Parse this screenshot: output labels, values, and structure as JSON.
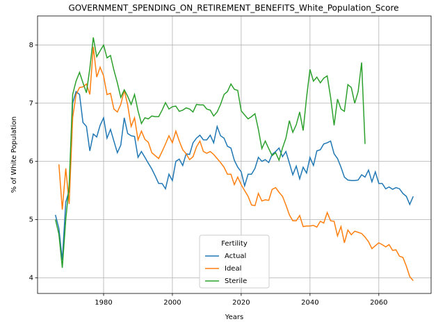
{
  "chart_data": {
    "type": "line",
    "title": "GOVERNMENT_SPENDING_ON_RETIREMENT_BENEFITS_White_Population_Score",
    "x_label": "Years",
    "y_label": "% of White Population",
    "legend_title": "Fertility",
    "legend": "lower center",
    "grid": true,
    "xlim": [
      1960.8,
      2075.2
    ],
    "xticks": [
      1980,
      2000,
      2020,
      2040,
      2060
    ],
    "ylim": [
      3.73,
      8.5
    ],
    "yticks": [
      4,
      5,
      6,
      7,
      8
    ],
    "x": [
      1966,
      1967,
      1968,
      1969,
      1970,
      1971,
      1972,
      1973,
      1974,
      1975,
      1976,
      1977,
      1978,
      1979,
      1980,
      1981,
      1982,
      1983,
      1984,
      1985,
      1986,
      1987,
      1988,
      1989,
      1990,
      1991,
      1992,
      1993,
      1994,
      1995,
      1996,
      1997,
      1998,
      1999,
      2000,
      2001,
      2002,
      2003,
      2004,
      2005,
      2006,
      2007,
      2008,
      2009,
      2010,
      2011,
      2012,
      2013,
      2014,
      2015,
      2016,
      2017,
      2018,
      2019,
      2020,
      2021,
      2022,
      2023,
      2024,
      2025,
      2026,
      2027,
      2028,
      2029,
      2030,
      2031,
      2032,
      2033,
      2034,
      2035,
      2036,
      2037,
      2038,
      2039,
      2040,
      2041,
      2042,
      2043,
      2044,
      2045,
      2046,
      2047,
      2048,
      2049,
      2050,
      2051,
      2052,
      2053,
      2054,
      2055,
      2056,
      2057,
      2058,
      2059,
      2060,
      2061,
      2062,
      2063,
      2064,
      2065,
      2066,
      2067,
      2068,
      2069,
      2070
    ],
    "series": [
      {
        "name": "Actual",
        "color": "#1f77b4",
        "values": [
          5.08,
          4.85,
          4.3,
          5.3,
          5.5,
          7.0,
          7.2,
          7.15,
          6.67,
          6.6,
          6.18,
          6.47,
          6.42,
          6.62,
          6.75,
          6.4,
          6.55,
          6.35,
          6.15,
          6.28,
          6.75,
          6.48,
          6.44,
          6.43,
          6.07,
          6.17,
          6.07,
          5.97,
          5.87,
          5.75,
          5.62,
          5.62,
          5.53,
          5.78,
          5.67,
          6.0,
          6.04,
          5.93,
          6.13,
          6.12,
          6.32,
          6.4,
          6.45,
          6.37,
          6.37,
          6.45,
          6.32,
          6.6,
          6.44,
          6.4,
          6.26,
          6.23,
          6.02,
          5.9,
          5.82,
          5.58,
          5.78,
          5.78,
          5.88,
          6.07,
          6.0,
          6.03,
          5.98,
          6.12,
          6.17,
          6.23,
          6.08,
          6.17,
          5.97,
          5.77,
          5.92,
          5.7,
          5.9,
          5.8,
          6.07,
          5.93,
          6.18,
          6.2,
          6.3,
          6.32,
          6.35,
          6.13,
          6.05,
          5.9,
          5.73,
          5.68,
          5.67,
          5.67,
          5.68,
          5.77,
          5.73,
          5.85,
          5.65,
          5.82,
          5.62,
          5.62,
          5.53,
          5.56,
          5.52,
          5.55,
          5.53,
          5.45,
          5.4,
          5.26,
          5.4
        ]
      },
      {
        "name": "Ideal",
        "color": "#ff7f0e",
        "values": [
          null,
          5.95,
          5.17,
          5.88,
          5.27,
          6.75,
          7.15,
          7.27,
          7.28,
          7.33,
          7.15,
          7.97,
          7.45,
          7.62,
          7.47,
          7.15,
          7.17,
          6.9,
          6.85,
          6.98,
          7.22,
          6.97,
          6.6,
          6.75,
          6.37,
          6.52,
          6.38,
          6.33,
          6.15,
          6.1,
          6.05,
          6.17,
          6.3,
          6.44,
          6.32,
          6.52,
          6.35,
          6.2,
          6.13,
          6.03,
          6.08,
          6.25,
          6.35,
          6.17,
          6.14,
          6.17,
          6.12,
          6.05,
          5.98,
          5.9,
          5.78,
          5.78,
          5.6,
          5.73,
          5.6,
          5.5,
          5.4,
          5.25,
          5.24,
          5.45,
          5.32,
          5.34,
          5.33,
          5.52,
          5.55,
          5.47,
          5.4,
          5.25,
          5.08,
          4.98,
          4.98,
          5.07,
          4.88,
          4.89,
          4.89,
          4.9,
          4.87,
          4.97,
          4.94,
          5.12,
          4.98,
          4.97,
          4.72,
          4.88,
          4.6,
          4.82,
          4.74,
          4.8,
          4.78,
          4.76,
          4.7,
          4.62,
          4.5,
          4.55,
          4.6,
          4.57,
          4.53,
          4.57,
          4.47,
          4.48,
          4.37,
          4.35,
          4.2,
          4.02,
          3.95
        ]
      },
      {
        "name": "Sterile",
        "color": "#2ca02c",
        "values": [
          5.0,
          4.75,
          4.17,
          5.0,
          5.6,
          7.15,
          7.38,
          7.53,
          7.35,
          7.18,
          7.6,
          8.13,
          7.8,
          7.9,
          8.0,
          7.78,
          7.82,
          7.57,
          7.35,
          7.1,
          7.23,
          7.12,
          6.98,
          7.15,
          6.87,
          6.65,
          6.75,
          6.73,
          6.78,
          6.77,
          6.77,
          6.88,
          7.01,
          6.9,
          6.94,
          6.95,
          6.86,
          6.88,
          6.92,
          6.9,
          6.85,
          6.98,
          6.97,
          6.97,
          6.9,
          6.88,
          6.78,
          6.85,
          6.98,
          7.15,
          7.2,
          7.33,
          7.24,
          7.22,
          6.87,
          6.8,
          6.73,
          6.77,
          6.82,
          6.55,
          6.22,
          6.35,
          6.22,
          6.1,
          6.15,
          6.02,
          6.23,
          6.4,
          6.7,
          6.5,
          6.63,
          6.85,
          6.53,
          7.1,
          7.58,
          7.38,
          7.45,
          7.35,
          7.43,
          7.47,
          7.1,
          6.62,
          7.07,
          6.9,
          6.86,
          7.32,
          7.27,
          7.0,
          7.2,
          7.7,
          6.3,
          null,
          null,
          null,
          null,
          null,
          null,
          null,
          null,
          null,
          null,
          null,
          null,
          null,
          null
        ]
      }
    ]
  }
}
